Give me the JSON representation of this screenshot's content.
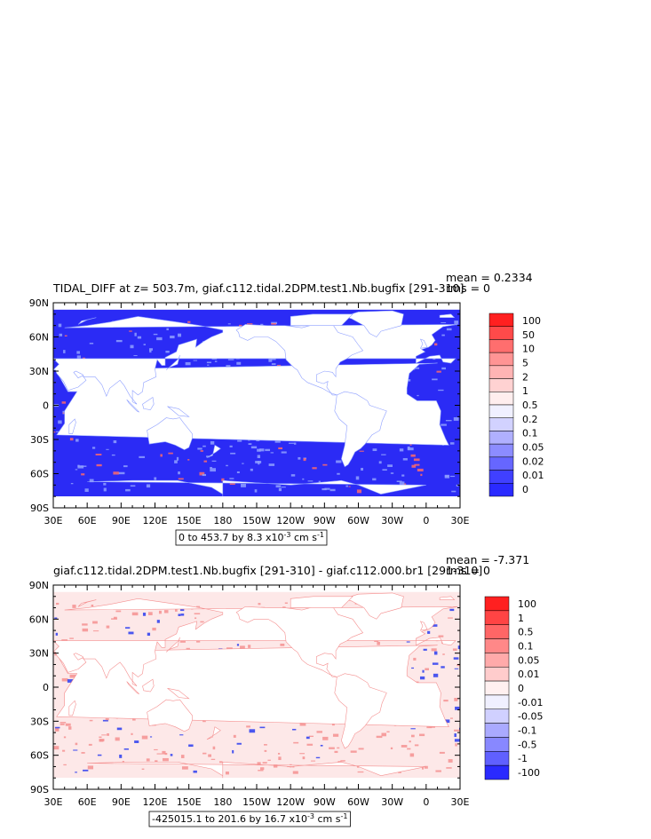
{
  "chart_data": [
    {
      "type": "heatmap",
      "title": "TIDAL_DIFF at z= 503.7m, giaf.c112.tidal.2DPM.test1.Nb.bugfix [291-310]",
      "stats": {
        "mean": "mean = 0.2334",
        "rms": "rms = 0"
      },
      "range_label": "0 to 453.7 by 8.3 x10",
      "range_exp": "-3",
      "range_unit": " cm s",
      "range_unit_exp": "-1",
      "x_ticks": [
        "30E",
        "60E",
        "90E",
        "120E",
        "150E",
        "180",
        "150W",
        "120W",
        "90W",
        "60W",
        "30W",
        "0",
        "30E"
      ],
      "y_ticks": [
        "90N",
        "60N",
        "30N",
        "0",
        "30S",
        "60S",
        "90S"
      ],
      "colorbar": {
        "labels": [
          "100",
          "50",
          "10",
          "5",
          "2",
          "1",
          "0.5",
          "0.2",
          "0.1",
          "0.05",
          "0.02",
          "0.01",
          "0"
        ],
        "colors": [
          "#ff2020",
          "#ff4a4a",
          "#ff6e6e",
          "#ff9494",
          "#ffb4b4",
          "#ffd2d2",
          "#ffeeee",
          "#f0f0ff",
          "#d2d2ff",
          "#b0b0ff",
          "#8c8cff",
          "#6666ff",
          "#4040ff",
          "#2a2aff"
        ]
      },
      "ocean_color": "#2b2bf5",
      "feature_color": "#8fa0ff",
      "accent_color": "#ff6a6a"
    },
    {
      "type": "heatmap",
      "title": "giaf.c112.tidal.2DPM.test1.Nb.bugfix [291-310] - giaf.c112.000.br1 [291-310]",
      "stats": {
        "mean": "mean = -7.371",
        "rms": "rms = 0"
      },
      "range_label": "-425015.1 to 201.6 by 16.7 x10",
      "range_exp": "-3",
      "range_unit": " cm s",
      "range_unit_exp": "-1",
      "x_ticks": [
        "30E",
        "60E",
        "90E",
        "120E",
        "150E",
        "180",
        "150W",
        "120W",
        "90W",
        "60W",
        "30W",
        "0",
        "30E"
      ],
      "y_ticks": [
        "90N",
        "60N",
        "30N",
        "0",
        "30S",
        "60S",
        "90S"
      ],
      "colorbar": {
        "labels": [
          "100",
          "1",
          "0.5",
          "0.1",
          "0.05",
          "0.01",
          "0",
          "-0.01",
          "-0.05",
          "-0.1",
          "-0.5",
          "-1",
          "-100"
        ],
        "colors": [
          "#ff2020",
          "#ff4444",
          "#ff6666",
          "#ff8888",
          "#ffaaaa",
          "#ffcccc",
          "#fff0f0",
          "#f0f0ff",
          "#d0d0ff",
          "#aaaaff",
          "#8888ff",
          "#6060ff",
          "#2a2aff"
        ]
      },
      "ocean_color": "#fde8e8",
      "feature_color": "#f49090",
      "accent_color": "#2a3cf0"
    }
  ]
}
